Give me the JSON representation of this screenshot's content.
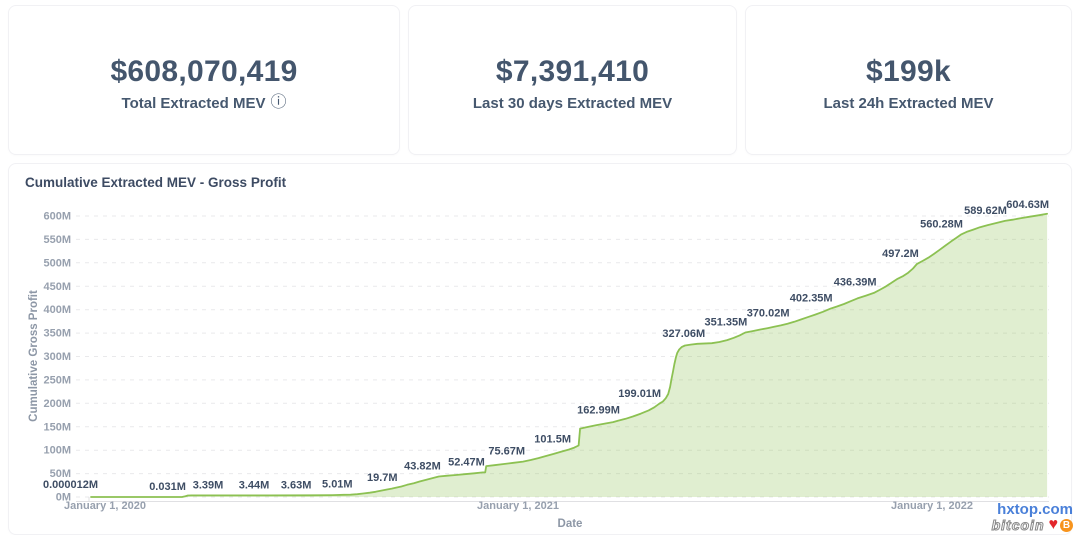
{
  "cards": [
    {
      "value": "$608,070,419",
      "label": "Total Extracted MEV",
      "info_icon": "ⓘ"
    },
    {
      "value": "$7,391,410",
      "label": "Last 30 days Extracted MEV"
    },
    {
      "value": "$199k",
      "label": "Last 24h Extracted MEV"
    }
  ],
  "watermark": {
    "site": "hxtop.com",
    "text": "bitcoin",
    "heart": "♥",
    "coin": "B"
  },
  "chart_data": {
    "type": "area",
    "title": "Cumulative Extracted MEV - Gross Profit",
    "xlabel": "Date",
    "ylabel": "Cumulative Gross Profit",
    "unit": "M (million USD)",
    "ylim": [
      0,
      600
    ],
    "grid": "dashed-horizontal",
    "legend": "none",
    "line_color": "#8CC152",
    "fill_color": "rgba(140,193,82,0.27)",
    "y_ticks": [
      {
        "v": 0,
        "label": "0M"
      },
      {
        "v": 50,
        "label": "50M"
      },
      {
        "v": 100,
        "label": "100M"
      },
      {
        "v": 150,
        "label": "150M"
      },
      {
        "v": 200,
        "label": "200M"
      },
      {
        "v": 250,
        "label": "250M"
      },
      {
        "v": 300,
        "label": "300M"
      },
      {
        "v": 350,
        "label": "350M"
      },
      {
        "v": 400,
        "label": "400M"
      },
      {
        "v": 450,
        "label": "450M"
      },
      {
        "v": 500,
        "label": "500M"
      },
      {
        "v": 550,
        "label": "550M"
      },
      {
        "v": 600,
        "label": "600M"
      }
    ],
    "x_ticks": [
      {
        "f": 0.0146,
        "label": "January 1, 2020"
      },
      {
        "f": 0.4457,
        "label": "January 1, 2021"
      },
      {
        "f": 0.8779,
        "label": "January 1, 2022"
      }
    ],
    "point_labels": [
      {
        "text": "0.000012M",
        "f": 0.0,
        "v": 1.2e-05,
        "align": "start",
        "dx": -48,
        "dy": -9
      },
      {
        "text": "0.031M",
        "f": 0.097,
        "v": 0.031
      },
      {
        "text": "3.39M",
        "f": 0.136,
        "v": 3.39
      },
      {
        "text": "3.44M",
        "f": 0.184,
        "v": 3.44
      },
      {
        "text": "3.63M",
        "f": 0.228,
        "v": 3.63
      },
      {
        "text": "5.01M",
        "f": 0.271,
        "v": 5.01
      },
      {
        "text": "19.7M",
        "f": 0.318,
        "v": 19.7
      },
      {
        "text": "43.82M",
        "f": 0.363,
        "v": 43.82
      },
      {
        "text": "52.47M",
        "f": 0.409,
        "v": 52.47
      },
      {
        "text": "75.67M",
        "f": 0.451,
        "v": 75.67
      },
      {
        "text": "101.5M",
        "f": 0.499,
        "v": 101.5
      },
      {
        "text": "162.99M",
        "f": 0.55,
        "v": 162.99
      },
      {
        "text": "199.01M",
        "f": 0.593,
        "v": 199.01
      },
      {
        "text": "327.06M",
        "f": 0.639,
        "v": 327.06
      },
      {
        "text": "351.35M",
        "f": 0.683,
        "v": 351.35
      },
      {
        "text": "370.02M",
        "f": 0.727,
        "v": 370.02
      },
      {
        "text": "402.35M",
        "f": 0.772,
        "v": 402.35
      },
      {
        "text": "436.39M",
        "f": 0.818,
        "v": 436.39
      },
      {
        "text": "497.2M",
        "f": 0.862,
        "v": 497.2
      },
      {
        "text": "560.28M",
        "f": 0.908,
        "v": 560.28
      },
      {
        "text": "589.62M",
        "f": 0.954,
        "v": 589.62
      },
      {
        "text": "604.63M",
        "f": 0.998,
        "v": 604.63,
        "dy": -6
      }
    ],
    "line": [
      [
        0.0,
        1.2e-05
      ],
      [
        0.03,
        0.02
      ],
      [
        0.095,
        0.031
      ],
      [
        0.0985,
        1.8
      ],
      [
        0.101,
        3.1
      ],
      [
        0.105,
        3.39
      ],
      [
        0.14,
        3.4
      ],
      [
        0.184,
        3.44
      ],
      [
        0.228,
        3.63
      ],
      [
        0.252,
        4.1
      ],
      [
        0.264,
        4.6
      ],
      [
        0.271,
        5.01
      ],
      [
        0.278,
        5.9
      ],
      [
        0.284,
        7.5
      ],
      [
        0.291,
        9.2
      ],
      [
        0.297,
        11.2
      ],
      [
        0.303,
        13.6
      ],
      [
        0.309,
        16.0
      ],
      [
        0.314,
        18.0
      ],
      [
        0.318,
        19.7
      ],
      [
        0.324,
        22.5
      ],
      [
        0.33,
        26.0
      ],
      [
        0.337,
        29.5
      ],
      [
        0.343,
        33.0
      ],
      [
        0.35,
        37.0
      ],
      [
        0.357,
        40.5
      ],
      [
        0.363,
        43.82
      ],
      [
        0.372,
        45.5
      ],
      [
        0.381,
        47.0
      ],
      [
        0.39,
        48.6
      ],
      [
        0.4,
        50.6
      ],
      [
        0.409,
        52.47
      ],
      [
        0.4115,
        52.6
      ],
      [
        0.4125,
        66.0
      ],
      [
        0.421,
        68.0
      ],
      [
        0.431,
        70.5
      ],
      [
        0.441,
        73.0
      ],
      [
        0.451,
        75.67
      ],
      [
        0.459,
        79.0
      ],
      [
        0.467,
        83.0
      ],
      [
        0.475,
        87.5
      ],
      [
        0.483,
        92.0
      ],
      [
        0.491,
        97.0
      ],
      [
        0.499,
        101.5
      ],
      [
        0.5045,
        105.5
      ],
      [
        0.509,
        110.0
      ],
      [
        0.5105,
        146.0
      ],
      [
        0.517,
        149.0
      ],
      [
        0.527,
        153.0
      ],
      [
        0.537,
        157.0
      ],
      [
        0.545,
        160.0
      ],
      [
        0.55,
        162.99
      ],
      [
        0.558,
        167.0
      ],
      [
        0.566,
        172.0
      ],
      [
        0.574,
        178.0
      ],
      [
        0.582,
        185.0
      ],
      [
        0.588,
        191.5
      ],
      [
        0.593,
        199.01
      ],
      [
        0.597,
        204.0
      ],
      [
        0.6,
        211.0
      ],
      [
        0.6025,
        220.0
      ],
      [
        0.6045,
        235.0
      ],
      [
        0.606,
        252.0
      ],
      [
        0.6075,
        268.0
      ],
      [
        0.609,
        284.0
      ],
      [
        0.6105,
        298.0
      ],
      [
        0.612,
        308.0
      ],
      [
        0.614,
        315.0
      ],
      [
        0.6165,
        320.0
      ],
      [
        0.62,
        323.5
      ],
      [
        0.626,
        325.5
      ],
      [
        0.633,
        327.06
      ],
      [
        0.648,
        328.5
      ],
      [
        0.656,
        331.0
      ],
      [
        0.664,
        335.0
      ],
      [
        0.671,
        340.0
      ],
      [
        0.677,
        345.0
      ],
      [
        0.683,
        351.35
      ],
      [
        0.69,
        354.0
      ],
      [
        0.698,
        357.5
      ],
      [
        0.706,
        360.5
      ],
      [
        0.713,
        363.5
      ],
      [
        0.72,
        366.5
      ],
      [
        0.727,
        370.02
      ],
      [
        0.734,
        374.0
      ],
      [
        0.741,
        379.0
      ],
      [
        0.748,
        384.0
      ],
      [
        0.756,
        389.5
      ],
      [
        0.764,
        395.5
      ],
      [
        0.772,
        402.35
      ],
      [
        0.779,
        407.0
      ],
      [
        0.786,
        412.0
      ],
      [
        0.793,
        418.0
      ],
      [
        0.8,
        424.0
      ],
      [
        0.809,
        430.0
      ],
      [
        0.818,
        436.39
      ],
      [
        0.824,
        443.0
      ],
      [
        0.83,
        450.0
      ],
      [
        0.836,
        458.0
      ],
      [
        0.842,
        466.0
      ],
      [
        0.848,
        472.0
      ],
      [
        0.853,
        479.0
      ],
      [
        0.858,
        488.0
      ],
      [
        0.862,
        497.2
      ],
      [
        0.868,
        504.0
      ],
      [
        0.874,
        511.0
      ],
      [
        0.88,
        519.0
      ],
      [
        0.886,
        528.0
      ],
      [
        0.892,
        537.0
      ],
      [
        0.898,
        546.0
      ],
      [
        0.903,
        553.0
      ],
      [
        0.908,
        560.28
      ],
      [
        0.914,
        566.0
      ],
      [
        0.921,
        571.0
      ],
      [
        0.928,
        576.0
      ],
      [
        0.936,
        580.5
      ],
      [
        0.945,
        585.0
      ],
      [
        0.954,
        589.62
      ],
      [
        0.962,
        592.0
      ],
      [
        0.971,
        595.5
      ],
      [
        0.98,
        598.5
      ],
      [
        0.989,
        601.5
      ],
      [
        0.998,
        604.63
      ]
    ]
  }
}
